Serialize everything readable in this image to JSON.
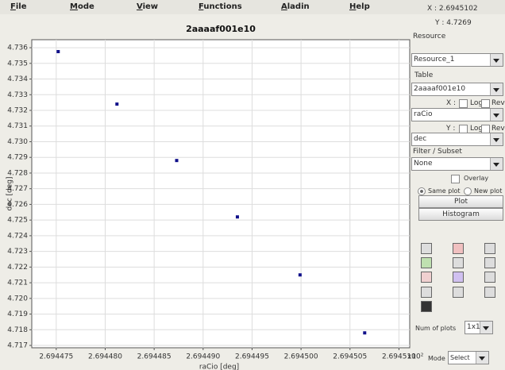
{
  "menu": [
    "File",
    "Mode",
    "View",
    "Functions",
    "Aladin",
    "Help"
  ],
  "chart_data": {
    "type": "scatter",
    "title": "2aaaaf001e10",
    "x_label": "raCio [deg]",
    "y_label": "dec [deg]",
    "x_multiplier": "x10²",
    "x": [
      2.6944752,
      2.6944812,
      2.6944873,
      2.6944935,
      2.6944999,
      2.6945065
    ],
    "values": [
      4.73575,
      4.7324,
      4.7288,
      4.7252,
      4.7215,
      4.7178
    ],
    "color": "#10108a",
    "grid": true,
    "xlim": [
      2.6944725,
      2.6945111
    ],
    "ylim": [
      4.71685,
      4.73651
    ],
    "xticks": [
      2.694475,
      {
        "value": 2.69448,
        "label": "2.694480"
      },
      2.694485,
      {
        "value": 2.69449,
        "label": "2.694490"
      },
      2.694495,
      {
        "value": 2.6945,
        "label": "2.694500"
      },
      2.694505,
      {
        "value": 2.69451,
        "label": "2.694510"
      }
    ],
    "yticks": [
      4.717,
      4.718,
      4.719,
      {
        "value": 4.72,
        "label": "4.720"
      },
      4.721,
      4.722,
      4.723,
      4.724,
      4.725,
      4.726,
      4.727,
      4.728,
      4.729,
      {
        "value": 4.73,
        "label": "4.730"
      },
      4.731,
      4.732,
      4.733,
      4.734,
      4.735,
      4.736
    ]
  },
  "panel": {
    "coord_x": "X : 2.6945102",
    "coord_y": "Y : 4.7269",
    "resource_label": "Resource",
    "resource": "Resource_1",
    "table_label": "Table",
    "table": "2aaaaf001e10",
    "x_axis": "X :",
    "log": "Log",
    "rev": "Rev",
    "x_column": "raCio",
    "y_axis": "Y :",
    "y_column": "dec",
    "filter_label": "Filter / Subset",
    "filter": "None",
    "overlay": "Overlay",
    "same_plot": "Same plot",
    "new_plot": "New plot",
    "plot_button": "Plot",
    "histogram_button": "Histogram",
    "num_plots_label": "Num of plots",
    "num_plots": "1x1",
    "mode_label": "Mode",
    "mode": "Select"
  }
}
